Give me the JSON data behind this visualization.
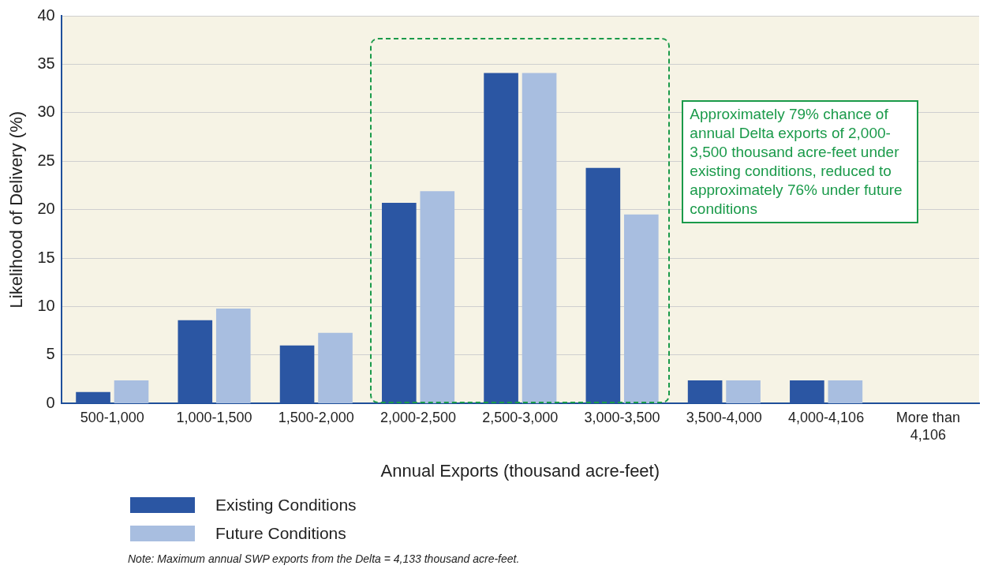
{
  "chart_data": {
    "type": "bar",
    "xlabel": "Annual Exports (thousand acre-feet)",
    "ylabel": "Likelihood of Delivery (%)",
    "categories": [
      "500-1,000",
      "1,000-1,500",
      "1,500-2,000",
      "2,000-2,500",
      "2,500-3,000",
      "3,000-3,500",
      "3,500-4,000",
      "4,000-4,106",
      "More than 4,106"
    ],
    "series": [
      {
        "name": "Existing Conditions",
        "color": "#2b56a3",
        "values": [
          1.2,
          8.6,
          6.0,
          20.7,
          34.1,
          24.3,
          2.4,
          2.4,
          0
        ]
      },
      {
        "name": "Future Conditions",
        "color": "#a8bee0",
        "values": [
          2.4,
          9.8,
          7.3,
          21.9,
          34.1,
          19.5,
          2.4,
          2.4,
          0
        ]
      }
    ],
    "ylim": [
      0,
      40
    ],
    "yticks": [
      0,
      5,
      10,
      15,
      20,
      25,
      30,
      35,
      40
    ],
    "grid": "y",
    "legend": "bottom",
    "annotations": [
      "Approximately 79% chance of annual Delta exports of 2,000-3,500 thousand acre-feet under existing conditions, reduced to approximately 76% under future conditions",
      "Note: Maximum annual SWP exports from the Delta = 4,133 thousand acre-feet."
    ]
  }
}
